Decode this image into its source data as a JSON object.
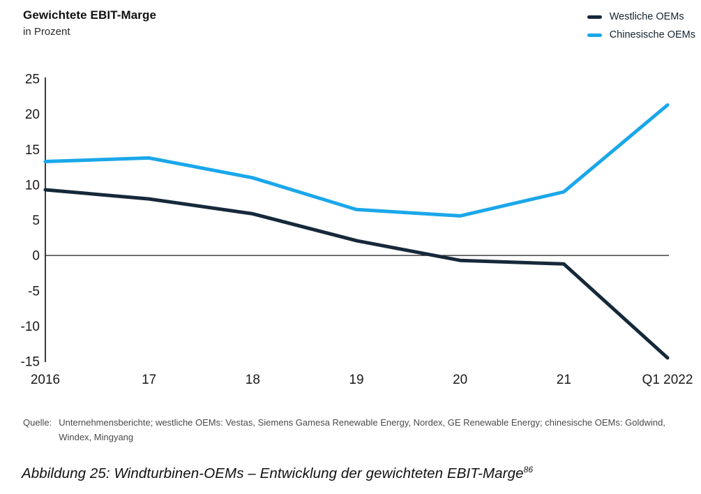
{
  "header": {
    "title": "Gewichtete EBIT-Marge",
    "subtitle": "in Prozent"
  },
  "legend": {
    "items": [
      {
        "label": "Westliche OEMs",
        "color": "#16293a"
      },
      {
        "label": "Chinesische OEMs",
        "color": "#1ba7ea"
      }
    ]
  },
  "chart_data": {
    "type": "line",
    "title": "Gewichtete EBIT-Marge",
    "unit_label": "in Prozent",
    "categories": [
      "2016",
      "17",
      "18",
      "19",
      "20",
      "21",
      "Q1 2022"
    ],
    "series": [
      {
        "name": "Westliche OEMs",
        "color": "#16293a",
        "values": [
          9.3,
          8.0,
          5.9,
          2.1,
          -0.7,
          -1.2,
          -14.5
        ]
      },
      {
        "name": "Chinesische OEMs",
        "color": "#1ba7ea",
        "values": [
          13.3,
          13.8,
          11.0,
          6.5,
          5.6,
          9.0,
          21.3
        ]
      }
    ],
    "ylim": [
      -15,
      25
    ],
    "ytick_step": 5,
    "yticks": [
      25,
      20,
      15,
      10,
      5,
      0,
      -5,
      -10,
      -15
    ],
    "grid": false,
    "zero_baseline": true,
    "legend_position": "top-right",
    "axis_color": "#1a1a1a"
  },
  "footnote": {
    "label": "Quelle:",
    "lines": [
      "Unternehmensberichte; westliche OEMs: Vestas, Siemens Gamesa Renewable Energy, Nordex, GE Renewable Energy; chinesische OEMs: Goldwind,",
      "Windex, Mingyang"
    ]
  },
  "caption": {
    "text": "Abbildung 25: Windturbinen-OEMs – Entwicklung der gewichteten EBIT-Marge",
    "superscript": "86"
  }
}
